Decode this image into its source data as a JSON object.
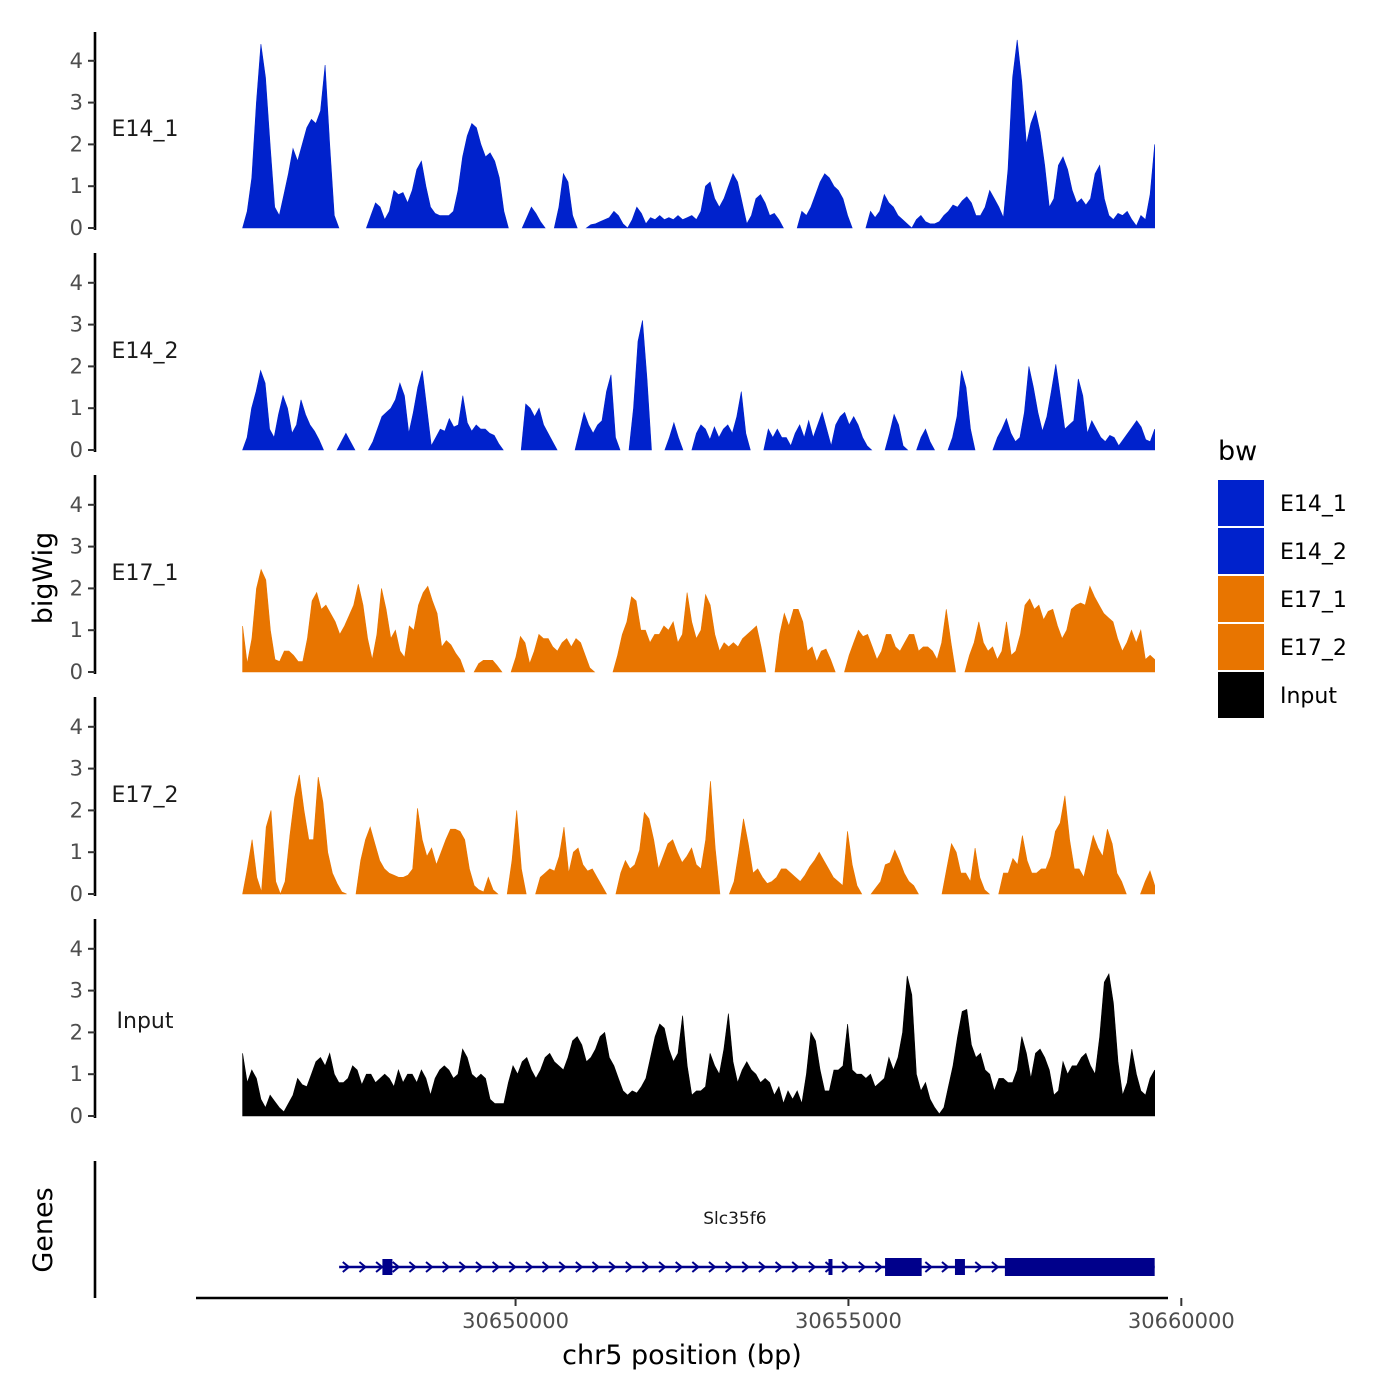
{
  "chart_data": {
    "type": "area",
    "title": "",
    "ylabel": "bigWig",
    "xlabel": "chr5 position (bp)",
    "genes_label": "Genes",
    "xlim": [
      30645200,
      30659800
    ],
    "ylim": [
      0,
      4.6
    ],
    "x_ticks": [
      30650000,
      30655000,
      30660000
    ],
    "x_tick_labels": [
      "30650000",
      "30655000",
      "30660000"
    ],
    "y_ticks": [
      0,
      1,
      2,
      3,
      4
    ],
    "y_tick_labels": [
      "0",
      "1",
      "2",
      "3",
      "4"
    ],
    "track_x_range": [
      30645900,
      30659600
    ],
    "legend": {
      "title": "bw",
      "placement": "right",
      "entries": [
        {
          "label": "E14_1",
          "color": "#0022CC"
        },
        {
          "label": "E14_2",
          "color": "#0022CC"
        },
        {
          "label": "E17_1",
          "color": "#E87500"
        },
        {
          "label": "E17_2",
          "color": "#E87500"
        },
        {
          "label": "Input",
          "color": "#000000"
        }
      ]
    },
    "series": [
      {
        "name": "E14_1",
        "color": "#0022CC",
        "values": [
          0,
          0.4,
          1.2,
          3.0,
          4.4,
          3.6,
          2.0,
          0.5,
          0.3,
          0.8,
          1.3,
          1.9,
          1.6,
          2.0,
          2.4,
          2.6,
          2.5,
          2.8,
          3.9,
          2.0,
          0.3,
          0,
          null,
          null,
          null,
          null,
          null,
          0,
          0.3,
          0.6,
          0.5,
          0.2,
          0.4,
          0.9,
          0.8,
          0.85,
          0.6,
          0.9,
          1.4,
          1.6,
          1.0,
          0.5,
          0.35,
          0.3,
          0.3,
          0.3,
          0.4,
          0.9,
          1.7,
          2.2,
          2.5,
          2.4,
          2.0,
          1.7,
          1.8,
          1.6,
          1.2,
          0.4,
          0,
          null,
          null,
          0,
          0.25,
          0.5,
          0.35,
          0.15,
          0,
          null,
          0,
          0.5,
          1.3,
          1.1,
          0.3,
          0,
          null,
          0,
          0.08,
          0.1,
          0.15,
          0.2,
          0.25,
          0.4,
          0.3,
          0.1,
          0,
          0.2,
          0.5,
          0.35,
          0.1,
          0.25,
          0.2,
          0.3,
          0.2,
          0.25,
          0.2,
          0.3,
          0.2,
          0.25,
          0.3,
          0.2,
          0.4,
          1.0,
          1.1,
          0.7,
          0.5,
          0.7,
          1.0,
          1.3,
          1.1,
          0.6,
          0.1,
          0.3,
          0.7,
          0.8,
          0.6,
          0.3,
          0.35,
          0.2,
          0,
          null,
          null,
          0,
          0.4,
          0.3,
          0.5,
          0.8,
          1.1,
          1.3,
          1.2,
          1.0,
          0.9,
          0.7,
          0.3,
          0,
          null,
          null,
          0,
          0.4,
          0.25,
          0.4,
          0.8,
          0.6,
          0.5,
          0.3,
          0.2,
          0.1,
          0,
          0.2,
          0.3,
          0.15,
          0.1,
          0.1,
          0.15,
          0.3,
          0.4,
          0.55,
          0.5,
          0.65,
          0.75,
          0.6,
          0.3,
          0.3,
          0.5,
          0.9,
          0.7,
          0.5,
          0.25,
          1.4,
          3.6,
          4.5,
          3.5,
          2.0,
          2.5,
          2.8,
          2.3,
          1.5,
          0.5,
          0.7,
          1.5,
          1.7,
          1.4,
          0.9,
          0.6,
          0.7,
          0.55,
          0.7,
          1.3,
          1.5,
          0.7,
          0.3,
          0.2,
          0.35,
          0.3,
          0.4,
          0.2,
          0.05,
          0.3,
          0.2,
          0.8,
          2.0
        ]
      },
      {
        "name": "E14_2",
        "color": "#0022CC",
        "values": [
          0,
          0.3,
          1.0,
          1.4,
          1.9,
          1.6,
          0.5,
          0.3,
          0.85,
          1.3,
          1.0,
          0.4,
          0.6,
          1.2,
          0.85,
          0.6,
          0.45,
          0.25,
          0,
          null,
          null,
          0,
          0.2,
          0.4,
          0.2,
          0,
          null,
          null,
          0,
          0.2,
          0.5,
          0.8,
          0.9,
          1.0,
          1.2,
          1.6,
          1.3,
          0.4,
          0.9,
          1.5,
          1.9,
          1.0,
          0.1,
          0.3,
          0.5,
          0.45,
          0.75,
          0.55,
          0.6,
          1.3,
          0.65,
          0.45,
          0.6,
          0.5,
          0.5,
          0.4,
          0.35,
          0.15,
          0,
          null,
          null,
          null,
          0,
          1.1,
          1.0,
          0.8,
          1.0,
          0.6,
          0.4,
          0.2,
          0,
          null,
          null,
          null,
          0,
          0.45,
          0.9,
          0.6,
          0.4,
          0.6,
          0.7,
          1.4,
          1.8,
          0.3,
          0,
          null,
          0,
          1.0,
          2.6,
          3.1,
          1.7,
          0,
          null,
          null,
          0,
          0.3,
          0.65,
          0.3,
          0,
          null,
          0,
          0.4,
          0.6,
          0.5,
          0.25,
          0.55,
          0.3,
          0.5,
          0.6,
          0.4,
          0.8,
          1.4,
          0.4,
          0,
          null,
          null,
          0,
          0.5,
          0.3,
          0.5,
          0.3,
          0.3,
          0.1,
          0.4,
          0.6,
          0.3,
          0.7,
          0.3,
          0.6,
          0.9,
          0.5,
          0.1,
          0.6,
          0.8,
          0.9,
          0.6,
          0.8,
          0.6,
          0.3,
          0.1,
          0,
          null,
          null,
          0,
          0.4,
          0.85,
          0.6,
          0.1,
          0,
          null,
          0,
          0.3,
          0.5,
          0.2,
          0,
          null,
          null,
          0,
          0.3,
          0.8,
          1.9,
          1.5,
          0.5,
          0,
          null,
          null,
          null,
          0,
          0.3,
          0.5,
          0.75,
          0.4,
          0.2,
          0.3,
          0.9,
          2.0,
          1.5,
          0.9,
          0.45,
          0.8,
          1.4,
          2.05,
          1.3,
          0.5,
          0.6,
          0.7,
          1.7,
          1.3,
          0.4,
          0.7,
          0.5,
          0.3,
          0.2,
          0.35,
          0.3,
          0.1,
          0.25,
          0.4,
          0.55,
          0.7,
          0.55,
          0.25,
          0.2,
          0.5
        ]
      },
      {
        "name": "E17_1",
        "color": "#E87500",
        "values": [
          1.1,
          0.2,
          0.8,
          2.0,
          2.45,
          2.2,
          1.0,
          0.3,
          0.25,
          0.5,
          0.5,
          0.4,
          0.25,
          0.25,
          0.8,
          1.7,
          1.9,
          1.5,
          1.6,
          1.4,
          1.2,
          0.9,
          1.1,
          1.35,
          1.6,
          2.1,
          1.6,
          0.8,
          0.3,
          0.9,
          2.0,
          1.5,
          0.8,
          1.0,
          0.5,
          0.35,
          1.1,
          1.0,
          1.6,
          1.9,
          2.05,
          1.7,
          1.4,
          0.6,
          0.75,
          0.65,
          0.45,
          0.3,
          0,
          null,
          0,
          0.2,
          0.28,
          0.28,
          0.28,
          0.15,
          0,
          null,
          0,
          0.35,
          0.85,
          0.7,
          0.2,
          0.5,
          0.9,
          0.8,
          0.8,
          0.6,
          0.5,
          0.7,
          0.8,
          0.6,
          0.8,
          0.7,
          0.4,
          0.1,
          0,
          null,
          null,
          null,
          0,
          0.4,
          0.9,
          1.2,
          1.8,
          1.7,
          1.0,
          1.0,
          0.7,
          0.9,
          0.9,
          1.1,
          1.0,
          1.2,
          0.7,
          0.9,
          1.9,
          1.2,
          0.8,
          1.0,
          1.85,
          1.6,
          0.9,
          0.5,
          0.7,
          0.6,
          0.7,
          0.6,
          0.8,
          0.9,
          1.0,
          1.1,
          0.6,
          0,
          null,
          0,
          0.9,
          1.4,
          1.1,
          1.5,
          1.5,
          1.2,
          0.5,
          0.6,
          0.25,
          0.5,
          0.55,
          0.3,
          0,
          null,
          0,
          0.4,
          0.7,
          1.0,
          0.85,
          0.9,
          0.6,
          0.3,
          0.5,
          0.9,
          0.9,
          0.6,
          0.5,
          0.7,
          0.9,
          0.9,
          0.5,
          0.6,
          0.6,
          0.5,
          0.3,
          0.7,
          1.5,
          0.7,
          0,
          null,
          0,
          0.4,
          0.7,
          1.2,
          0.7,
          0.5,
          0.6,
          0.3,
          0.5,
          1.2,
          0.4,
          0.5,
          0.9,
          1.6,
          1.75,
          1.5,
          1.6,
          1.25,
          1.45,
          1.5,
          1.1,
          0.8,
          1.0,
          1.5,
          1.6,
          1.65,
          1.6,
          2.05,
          1.8,
          1.6,
          1.4,
          1.3,
          1.2,
          0.8,
          0.5,
          0.7,
          1.0,
          0.7,
          1.0,
          0.3,
          0.4,
          0.3
        ]
      },
      {
        "name": "E17_2",
        "color": "#E87500",
        "values": [
          0,
          0.6,
          1.3,
          0.4,
          0.05,
          1.6,
          2.0,
          0.3,
          0,
          0.3,
          1.4,
          2.3,
          2.85,
          2.0,
          1.3,
          1.3,
          2.8,
          2.2,
          1.0,
          0.5,
          0.25,
          0.05,
          0,
          null,
          0,
          0.8,
          1.3,
          1.6,
          1.2,
          0.8,
          0.6,
          0.5,
          0.45,
          0.4,
          0.4,
          0.45,
          0.6,
          2.05,
          1.3,
          0.9,
          1.1,
          0.7,
          1.0,
          1.3,
          1.55,
          1.55,
          1.5,
          1.3,
          0.6,
          0.2,
          0.1,
          0.05,
          0.4,
          0.1,
          0,
          null,
          0,
          0.8,
          2.0,
          0.6,
          0,
          null,
          0,
          0.4,
          0.5,
          0.6,
          0.55,
          0.9,
          1.6,
          0.5,
          1.0,
          1.1,
          0.7,
          0.55,
          0.6,
          0.4,
          0.2,
          0,
          null,
          0,
          0.5,
          0.8,
          0.6,
          0.7,
          1.05,
          1.95,
          1.8,
          1.3,
          0.6,
          0.9,
          1.2,
          1.3,
          1.0,
          0.75,
          0.9,
          1.1,
          0.7,
          0.6,
          1.3,
          2.7,
          1.1,
          0,
          null,
          0,
          0.3,
          1.0,
          1.8,
          1.2,
          0.5,
          0.6,
          0.4,
          0.25,
          0.3,
          0.4,
          0.6,
          0.6,
          0.5,
          0.4,
          0.3,
          0.45,
          0.65,
          0.8,
          1.0,
          0.8,
          0.6,
          0.4,
          0.3,
          0.2,
          1.5,
          0.7,
          0.2,
          0,
          null,
          0,
          0.15,
          0.3,
          0.7,
          0.75,
          1.05,
          0.8,
          0.5,
          0.3,
          0.2,
          0,
          null,
          null,
          null,
          null,
          0,
          0.6,
          1.2,
          1.0,
          0.5,
          0.5,
          0.3,
          1.1,
          0.4,
          0.1,
          0,
          null,
          0,
          0.5,
          0.5,
          0.85,
          0.7,
          1.4,
          0.8,
          0.5,
          0.5,
          0.6,
          0.6,
          0.9,
          1.5,
          1.7,
          2.35,
          1.3,
          0.6,
          0.6,
          0.4,
          0.9,
          1.4,
          1.1,
          0.9,
          1.55,
          1.2,
          0.5,
          0.3,
          0,
          null,
          null,
          0,
          0.3,
          0.55,
          0.2
        ]
      },
      {
        "name": "Input",
        "color": "#000000",
        "values": [
          1.5,
          0.8,
          1.1,
          0.9,
          0.4,
          0.2,
          0.5,
          0.35,
          0.2,
          0.1,
          0.3,
          0.5,
          0.9,
          0.75,
          0.7,
          1.0,
          1.3,
          1.4,
          1.2,
          1.5,
          1.0,
          0.8,
          0.8,
          0.9,
          1.2,
          1.1,
          0.75,
          1.0,
          1.0,
          0.8,
          0.9,
          1.0,
          0.9,
          0.7,
          1.1,
          0.8,
          1.0,
          1.0,
          0.8,
          1.1,
          0.9,
          0.5,
          0.9,
          1.1,
          1.2,
          1.1,
          0.9,
          1.0,
          1.6,
          1.4,
          1.0,
          0.9,
          1.0,
          0.9,
          0.4,
          0.3,
          0.3,
          0.3,
          0.8,
          1.2,
          1.0,
          1.3,
          1.4,
          1.1,
          0.9,
          1.1,
          1.4,
          1.5,
          1.3,
          1.2,
          1.1,
          1.4,
          1.8,
          1.9,
          1.7,
          1.3,
          1.4,
          1.6,
          1.9,
          2.0,
          1.4,
          1.2,
          0.9,
          0.6,
          0.5,
          0.6,
          0.55,
          0.7,
          0.9,
          1.4,
          1.9,
          2.2,
          2.1,
          1.6,
          1.3,
          1.5,
          2.4,
          1.2,
          0.5,
          0.6,
          0.6,
          0.7,
          1.5,
          1.2,
          1.0,
          1.6,
          2.45,
          1.3,
          0.8,
          1.1,
          1.3,
          1.1,
          1.0,
          0.8,
          0.9,
          0.8,
          0.5,
          0.7,
          0.3,
          0.6,
          0.4,
          0.6,
          0.3,
          1.0,
          2.0,
          1.8,
          1.1,
          0.6,
          0.6,
          1.1,
          1.1,
          1.2,
          2.2,
          1.1,
          1.0,
          1.0,
          0.9,
          1.0,
          0.7,
          0.8,
          0.9,
          1.4,
          1.1,
          1.4,
          2.0,
          3.35,
          2.9,
          1.0,
          0.6,
          0.8,
          0.4,
          0.2,
          0.05,
          0.2,
          0.7,
          1.2,
          1.9,
          2.5,
          2.55,
          1.7,
          1.4,
          1.5,
          1.1,
          1.0,
          0.6,
          0.9,
          0.9,
          0.8,
          0.8,
          1.1,
          1.9,
          1.5,
          0.9,
          1.5,
          1.6,
          1.4,
          1.1,
          0.5,
          0.6,
          1.3,
          1.0,
          1.2,
          1.2,
          1.4,
          1.5,
          1.2,
          1.0,
          1.9,
          3.2,
          3.4,
          2.7,
          1.3,
          0.5,
          0.8,
          1.6,
          1.0,
          0.6,
          0.5,
          0.9,
          1.1
        ]
      }
    ],
    "gene_track": {
      "name": "Slc35f6",
      "strand": "+",
      "start": 30647350,
      "end": 30659600,
      "color": "#00008B",
      "exons": [
        [
          30648000,
          30648150
        ],
        [
          30654700,
          30654760
        ],
        [
          30655550,
          30656100
        ],
        [
          30656600,
          30656750
        ],
        [
          30657350,
          30659600
        ]
      ]
    }
  }
}
